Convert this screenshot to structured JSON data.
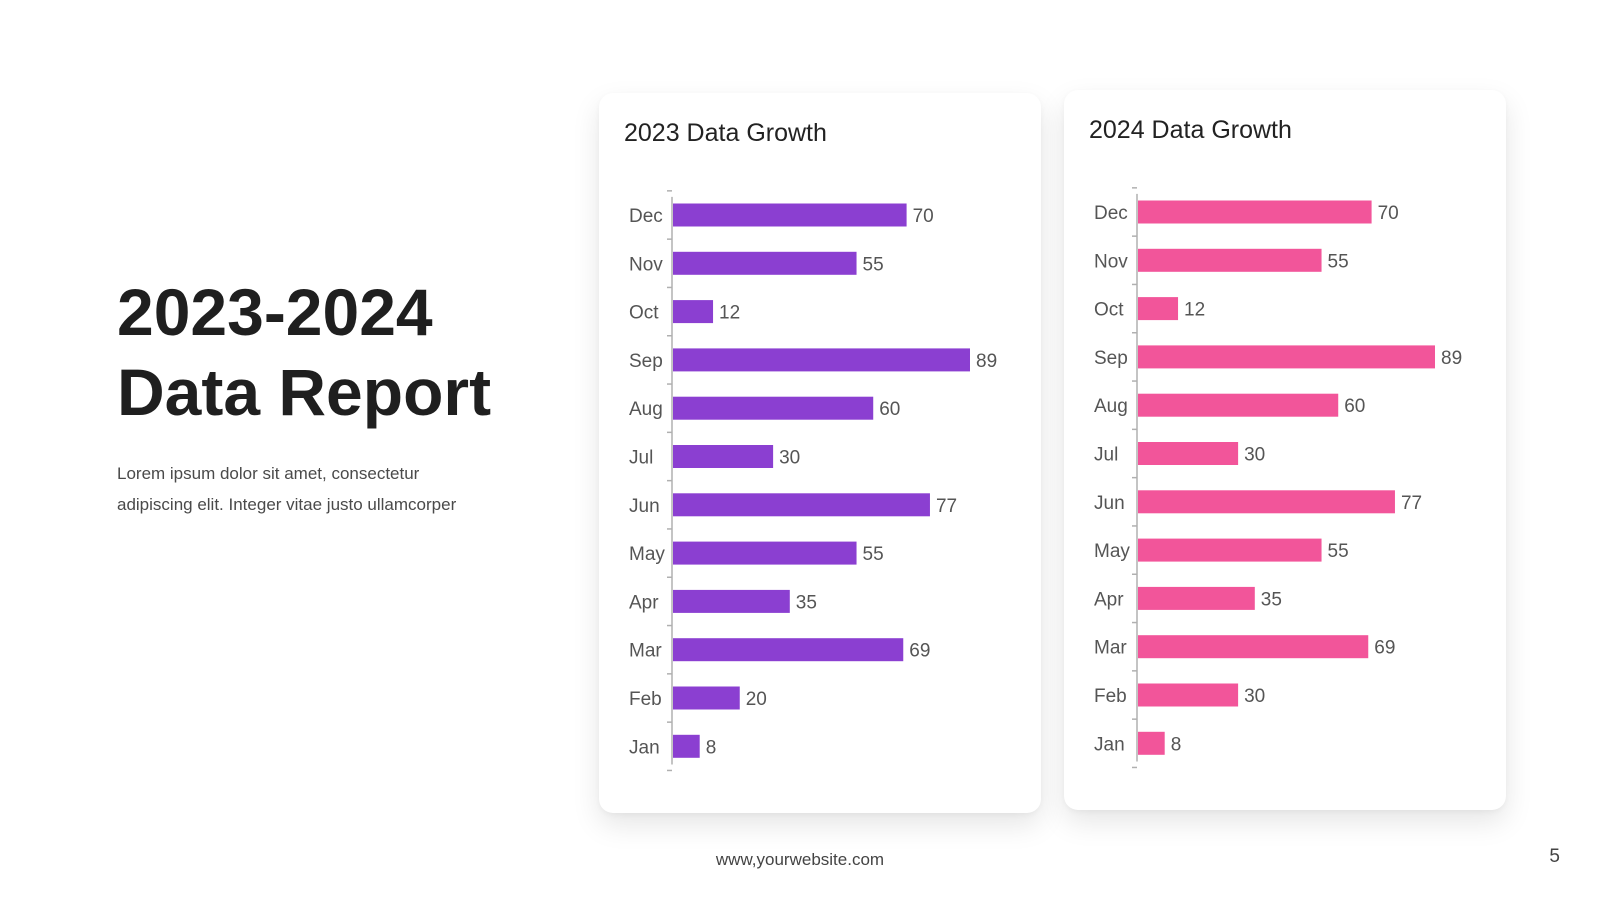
{
  "slide": {
    "title_lines": [
      "2023-2024",
      "Data Report"
    ],
    "subtitle_lines": [
      "Lorem ipsum dolor sit amet, consectetur",
      "adipiscing elit. Integer vitae justo ullamcorper"
    ],
    "footer_url": "www,yourwebsite.com",
    "page_number": "5"
  },
  "chart_data": [
    {
      "type": "bar",
      "orientation": "horizontal",
      "title": "2023 Data Growth",
      "categories": [
        "Dec",
        "Nov",
        "Oct",
        "Sep",
        "Aug",
        "Jul",
        "Jun",
        "May",
        "Apr",
        "Mar",
        "Feb",
        "Jan"
      ],
      "values": [
        70,
        55,
        12,
        89,
        60,
        30,
        77,
        55,
        35,
        69,
        20,
        8
      ],
      "color": "#8b3fd1",
      "xlim": [
        0,
        89
      ],
      "grid": false,
      "data_labels": true
    },
    {
      "type": "bar",
      "orientation": "horizontal",
      "title": "2024 Data Growth",
      "categories": [
        "Dec",
        "Nov",
        "Oct",
        "Sep",
        "Aug",
        "Jul",
        "Jun",
        "May",
        "Apr",
        "Mar",
        "Feb",
        "Jan"
      ],
      "values": [
        70,
        55,
        12,
        89,
        60,
        30,
        77,
        55,
        35,
        69,
        30,
        8
      ],
      "color": "#f2559a",
      "xlim": [
        0,
        89
      ],
      "grid": false,
      "data_labels": true
    }
  ]
}
